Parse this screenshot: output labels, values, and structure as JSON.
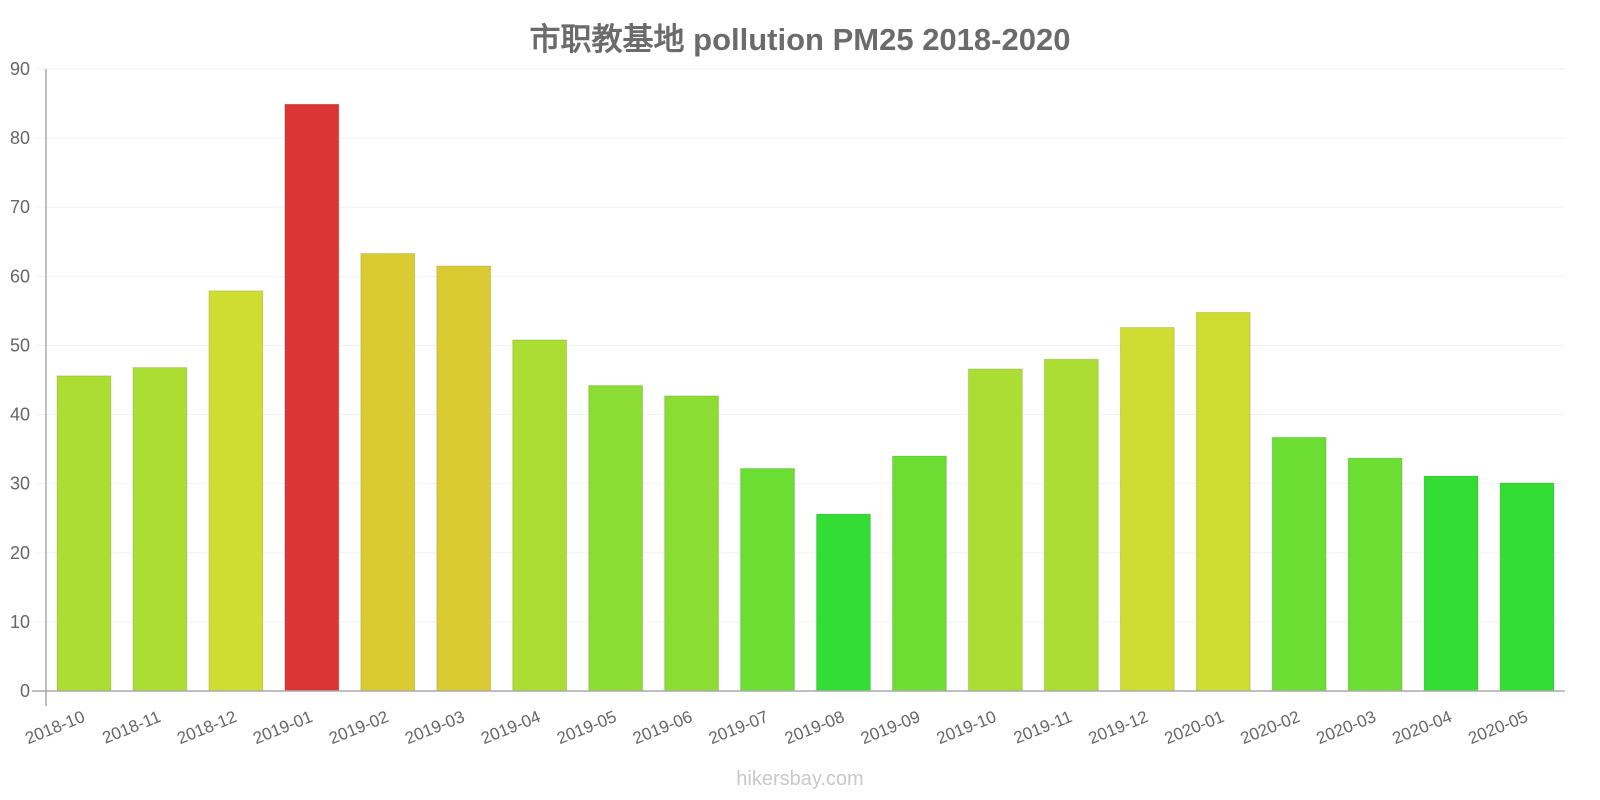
{
  "chart_data": {
    "type": "bar",
    "title": "市职教基地 pollution PM25 2018-2020",
    "xlabel": "",
    "ylabel": "",
    "ylim": [
      0,
      90
    ],
    "yticks": [
      0,
      10,
      20,
      30,
      40,
      50,
      60,
      70,
      80,
      90
    ],
    "grid": true,
    "legend": "none",
    "categories": [
      "2018-10",
      "2018-11",
      "2018-12",
      "2019-01",
      "2019-02",
      "2019-03",
      "2019-04",
      "2019-05",
      "2019-06",
      "2019-07",
      "2019-08",
      "2019-09",
      "2019-10",
      "2019-11",
      "2019-12",
      "2020-01",
      "2020-02",
      "2020-03",
      "2020-04",
      "2020-05"
    ],
    "values": [
      45.6,
      46.8,
      57.9,
      84.9,
      63.3,
      61.5,
      50.8,
      44.2,
      42.7,
      32.2,
      25.6,
      34.0,
      46.6,
      48.0,
      52.6,
      54.8,
      36.7,
      33.7,
      31.1,
      30.1
    ],
    "colors": [
      "#abdd32",
      "#abdd32",
      "#cfdc32",
      "#db3535",
      "#dacb33",
      "#dacb33",
      "#abdd32",
      "#8cdd33",
      "#8cdd33",
      "#6cdd33",
      "#33dd33",
      "#6cdd33",
      "#abdd32",
      "#abdd32",
      "#cfdc32",
      "#cfdc32",
      "#6cdd33",
      "#6cdd33",
      "#33dd33",
      "#33dd33"
    ]
  },
  "footer": {
    "watermark": "hikersbay.com"
  }
}
